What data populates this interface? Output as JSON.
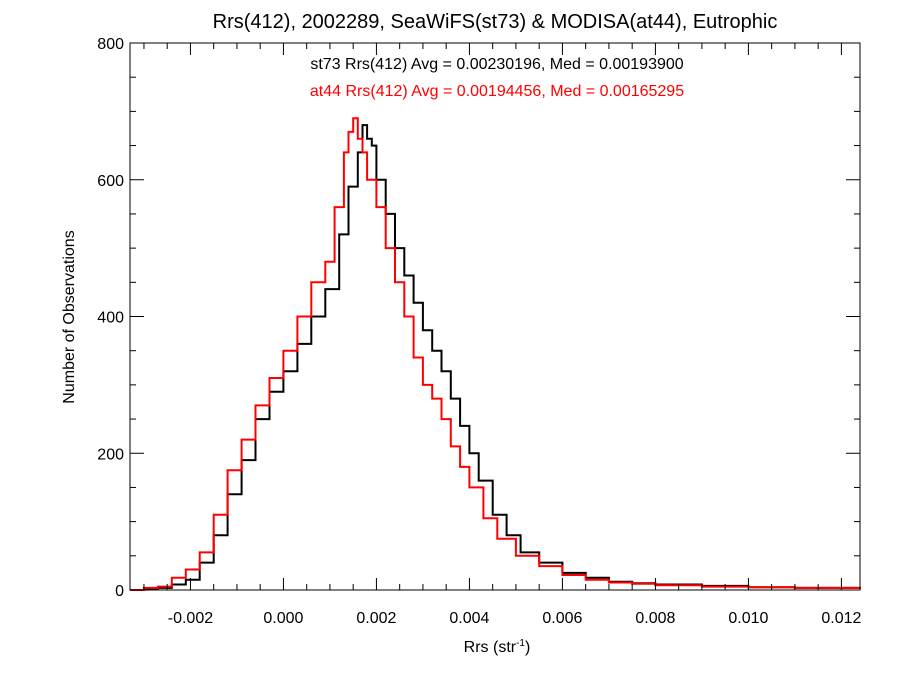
{
  "chart_data": {
    "type": "line",
    "title": "Rrs(412), 2002289, SeaWiFS(st73) & MODISA(at44), Eutrophic",
    "xlabel": "Rrs (str",
    "xlabel_sup": "-1",
    "xlabel_close": ")",
    "ylabel": "Number of Observations",
    "xlim": [
      -0.0033,
      0.0124
    ],
    "ylim": [
      0,
      800
    ],
    "x_ticks": [
      -0.002,
      0.0,
      0.002,
      0.004,
      0.006,
      0.008,
      0.01,
      0.012
    ],
    "x_tick_labels": [
      "-0.002",
      "0.000",
      "0.002",
      "0.004",
      "0.006",
      "0.008",
      "0.010",
      "0.012"
    ],
    "y_ticks": [
      0,
      200,
      400,
      600,
      800
    ],
    "y_tick_labels": [
      "0",
      "200",
      "400",
      "600",
      "800"
    ],
    "x_minor_step": 0.0005,
    "y_minor_step": 50,
    "grid": false,
    "annotations": [
      {
        "text": "st73 Rrs(412) Avg = 0.00230196, Med = 0.00193900",
        "color": "#000000"
      },
      {
        "text": "at44 Rrs(412) Avg = 0.00194456, Med = 0.00165295",
        "color": "#ff0000"
      }
    ],
    "series": [
      {
        "color": "#000000",
        "x": [
          -0.0033,
          -0.003,
          -0.0027,
          -0.0024,
          -0.0021,
          -0.0018,
          -0.0015,
          -0.0012,
          -0.0009,
          -0.0006,
          -0.0003,
          0.0,
          0.0003,
          0.0006,
          0.0009,
          0.0012,
          0.0014,
          0.0016,
          0.0017,
          0.0018,
          0.0019,
          0.002,
          0.0022,
          0.0024,
          0.0026,
          0.0028,
          0.003,
          0.0032,
          0.0034,
          0.0036,
          0.0038,
          0.004,
          0.0042,
          0.0045,
          0.0048,
          0.0051,
          0.0055,
          0.006,
          0.0065,
          0.007,
          0.0075,
          0.008,
          0.009,
          0.01,
          0.011,
          0.0124
        ],
        "y": [
          0,
          2,
          3,
          8,
          15,
          40,
          80,
          140,
          190,
          250,
          290,
          320,
          360,
          400,
          440,
          520,
          590,
          640,
          680,
          660,
          650,
          600,
          550,
          500,
          460,
          420,
          380,
          350,
          320,
          280,
          240,
          200,
          160,
          110,
          80,
          55,
          40,
          25,
          18,
          12,
          10,
          8,
          6,
          4,
          3,
          2
        ]
      },
      {
        "color": "#ff0000",
        "x": [
          -0.0033,
          -0.003,
          -0.0027,
          -0.0024,
          -0.0021,
          -0.0018,
          -0.0015,
          -0.0012,
          -0.0009,
          -0.0006,
          -0.0003,
          0.0,
          0.0003,
          0.0006,
          0.0009,
          0.0011,
          0.0013,
          0.0014,
          0.0015,
          0.0016,
          0.0017,
          0.0018,
          0.002,
          0.0022,
          0.0024,
          0.0026,
          0.0028,
          0.003,
          0.0032,
          0.0034,
          0.0036,
          0.0038,
          0.004,
          0.0043,
          0.0046,
          0.005,
          0.0055,
          0.006,
          0.0065,
          0.007,
          0.0075,
          0.008,
          0.009,
          0.01,
          0.011,
          0.0124
        ],
        "y": [
          0,
          3,
          5,
          18,
          30,
          55,
          110,
          175,
          220,
          270,
          310,
          350,
          400,
          450,
          480,
          560,
          640,
          670,
          690,
          660,
          640,
          600,
          560,
          500,
          450,
          400,
          340,
          300,
          280,
          250,
          210,
          180,
          150,
          105,
          75,
          50,
          35,
          22,
          15,
          11,
          9,
          7,
          5,
          4,
          3,
          2
        ]
      }
    ]
  }
}
